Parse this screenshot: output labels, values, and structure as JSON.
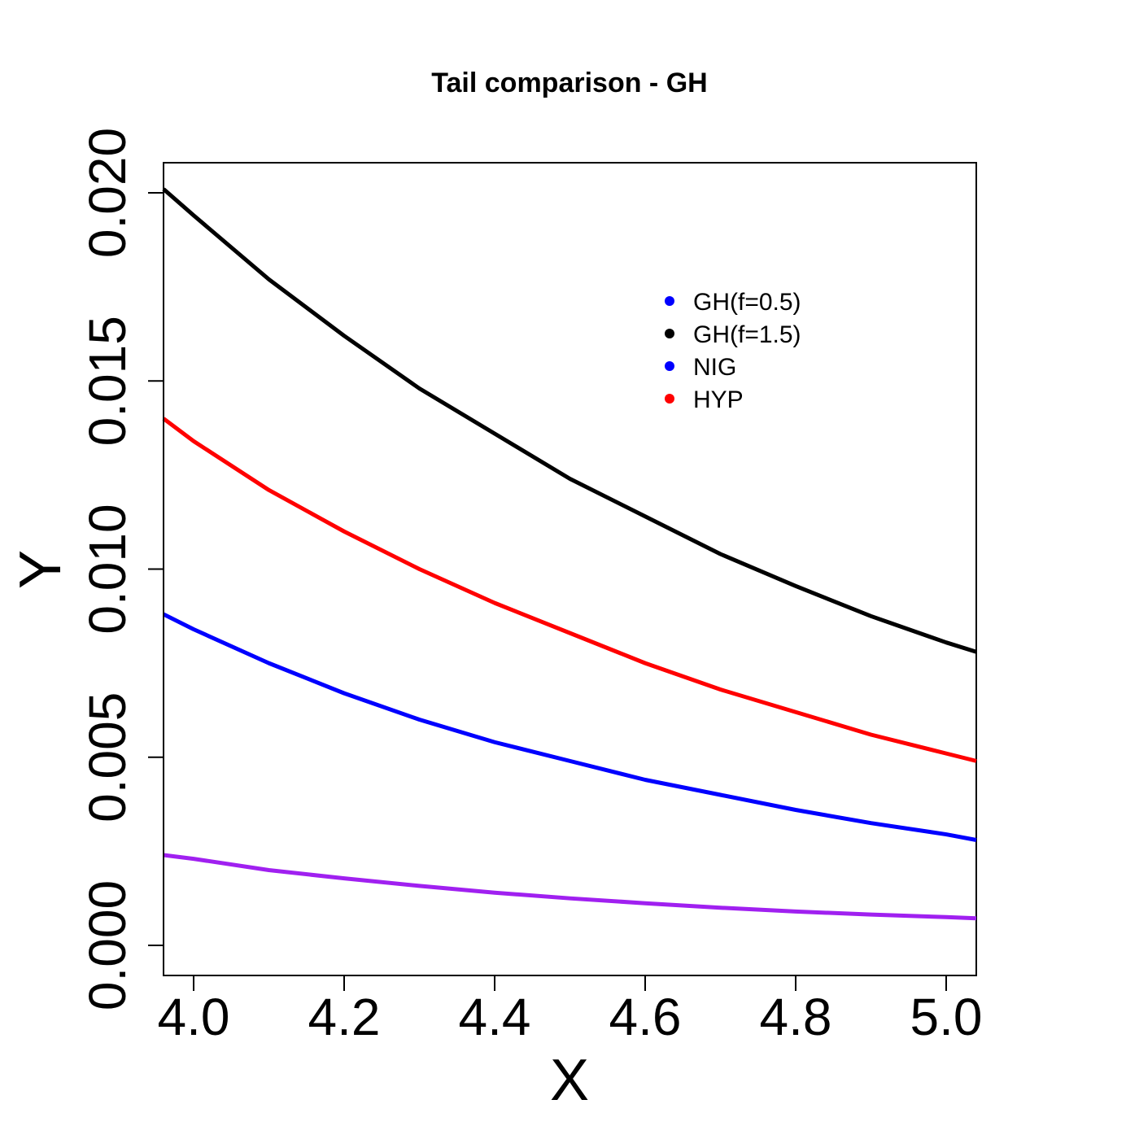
{
  "chart_data": {
    "type": "line",
    "title": "Tail comparison - GH",
    "xlabel": "X",
    "ylabel": "Y",
    "xlim": [
      3.96,
      5.04
    ],
    "ylim": [
      -0.0008,
      0.0208
    ],
    "x_ticks": [
      4.0,
      4.2,
      4.4,
      4.6,
      4.8,
      5.0
    ],
    "x_tick_labels": [
      "4.0",
      "4.2",
      "4.4",
      "4.6",
      "4.8",
      "5.0"
    ],
    "y_ticks": [
      0.0,
      0.005,
      0.01,
      0.015,
      0.02
    ],
    "y_tick_labels": [
      "0.000",
      "0.005",
      "0.010",
      "0.015",
      "0.020"
    ],
    "x": [
      3.96,
      4.0,
      4.1,
      4.2,
      4.3,
      4.4,
      4.5,
      4.6,
      4.7,
      4.8,
      4.9,
      5.0,
      5.04
    ],
    "series": [
      {
        "color": "#000000",
        "values": [
          0.0201,
          0.0194,
          0.0177,
          0.0162,
          0.0148,
          0.0136,
          0.0124,
          0.0114,
          0.0104,
          0.00955,
          0.00875,
          0.00805,
          0.0078
        ]
      },
      {
        "color": "#ff0000",
        "values": [
          0.014,
          0.0134,
          0.0121,
          0.011,
          0.01,
          0.0091,
          0.0083,
          0.0075,
          0.0068,
          0.0062,
          0.0056,
          0.0051,
          0.0049
        ]
      },
      {
        "color": "#0000ff",
        "values": [
          0.0088,
          0.0084,
          0.0075,
          0.0067,
          0.006,
          0.0054,
          0.0049,
          0.0044,
          0.004,
          0.0036,
          0.00325,
          0.00295,
          0.0028
        ]
      },
      {
        "color": "#a020f0",
        "values": [
          0.0024,
          0.0023,
          0.002,
          0.00178,
          0.00158,
          0.0014,
          0.00125,
          0.00112,
          0.001,
          0.0009,
          0.00082,
          0.00075,
          0.00072
        ]
      }
    ],
    "legend": {
      "placement": "top-right",
      "entries": [
        {
          "label": "GH(f=0.5)",
          "color": "#0000ff"
        },
        {
          "label": "GH(f=1.5)",
          "color": "#000000"
        },
        {
          "label": "NIG",
          "color": "#0000ff"
        },
        {
          "label": "HYP",
          "color": "#ff0000"
        }
      ]
    }
  }
}
